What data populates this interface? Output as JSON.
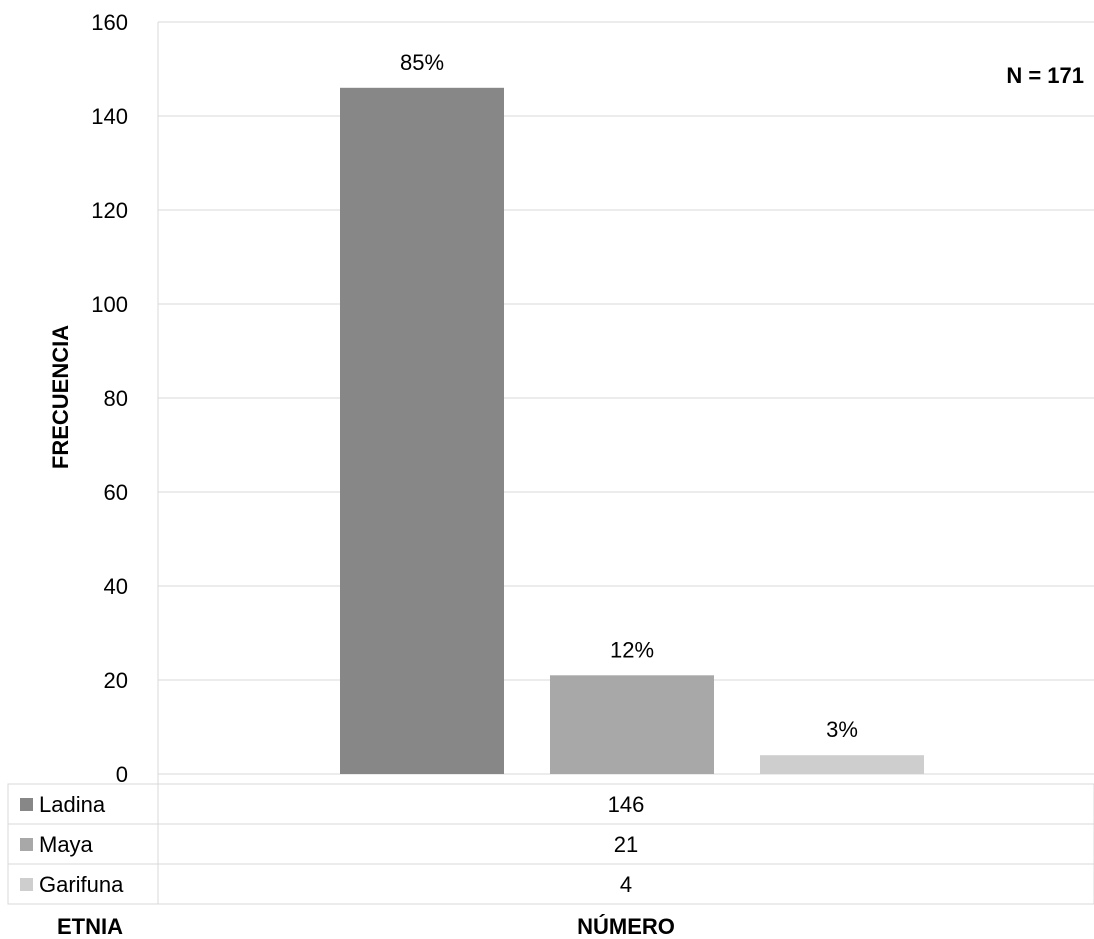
{
  "chart_data": {
    "type": "bar",
    "categories": [
      "NÚMERO"
    ],
    "series": [
      {
        "name": "Ladina",
        "value": 146,
        "label": "85%",
        "color": "#878787"
      },
      {
        "name": "Maya",
        "value": 21,
        "label": "12%",
        "color": "#a8a8a8"
      },
      {
        "name": "Garifuna",
        "value": 4,
        "label": "3%",
        "color": "#cecece"
      }
    ],
    "ylabel": "FRECUENCIA",
    "xlabel": "NÚMERO",
    "table_header": "ETNIA",
    "annotation": "N = 171",
    "ylim": [
      0,
      160
    ],
    "yticks": [
      0,
      20,
      40,
      60,
      80,
      100,
      120,
      140,
      160
    ],
    "grid": true,
    "legend": "data-table"
  }
}
